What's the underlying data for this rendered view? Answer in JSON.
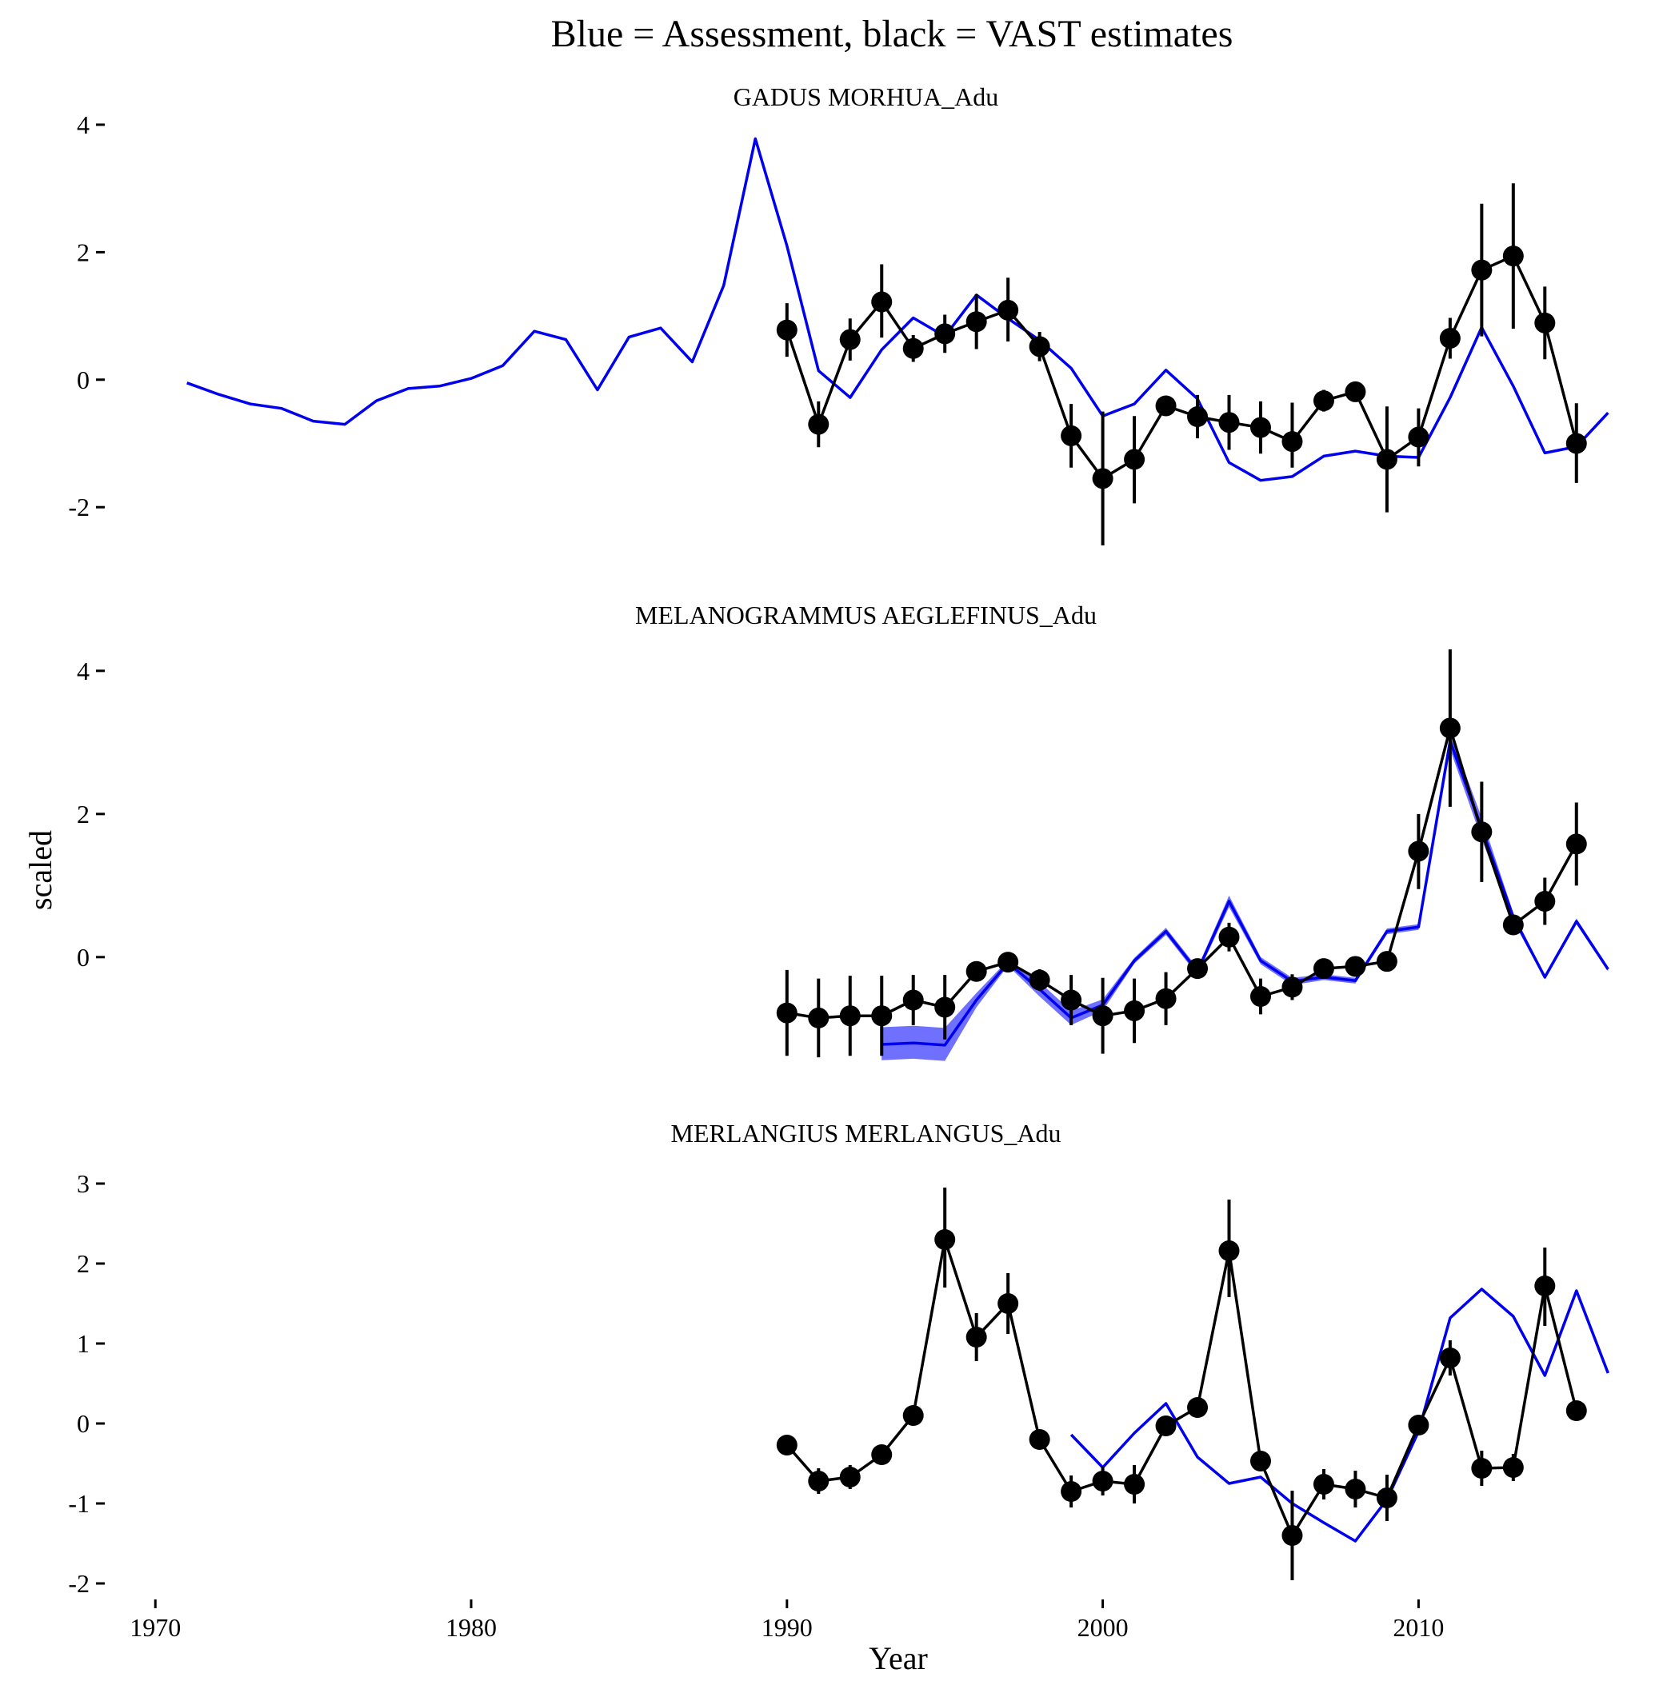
{
  "title": "Blue = Assessment, black = VAST estimates",
  "xlabel": "Year",
  "ylabel": "scaled",
  "colors": {
    "assessment": "#0000ee",
    "assessment_band": "#7070ff",
    "vast": "#000000"
  },
  "chart_data": {
    "type": "line",
    "x_axis": {
      "label": "Year",
      "range": [
        1968.5,
        2016.5
      ],
      "ticks": [
        1970,
        1980,
        1990,
        2000,
        2010
      ]
    },
    "legend": "none",
    "grid": false,
    "panels": [
      {
        "title": "GADUS MORHUA_Adu",
        "ylim": [
          -2.7,
          4.2
        ],
        "yticks": [
          -2,
          0,
          2,
          4
        ],
        "series": [
          {
            "kind": "assessment",
            "x": [
              1971,
              1972,
              1973,
              1974,
              1975,
              1976,
              1977,
              1978,
              1979,
              1980,
              1981,
              1982,
              1983,
              1984,
              1985,
              1986,
              1987,
              1988,
              1989,
              1990,
              1991,
              1992,
              1993,
              1994,
              1995,
              1996,
              1997,
              1998,
              1999,
              2000,
              2001,
              2002,
              2003,
              2004,
              2005,
              2006,
              2007,
              2008,
              2009,
              2010,
              2011,
              2012,
              2013,
              2014,
              2015,
              2016
            ],
            "y": [
              -0.05,
              -0.23,
              -0.38,
              -0.45,
              -0.65,
              -0.7,
              -0.33,
              -0.14,
              -0.1,
              0.02,
              0.22,
              0.76,
              0.63,
              -0.16,
              0.67,
              0.81,
              0.28,
              1.48,
              3.78,
              2.1,
              0.14,
              -0.28,
              0.47,
              0.97,
              0.68,
              1.33,
              0.96,
              0.62,
              0.18,
              -0.57,
              -0.38,
              0.15,
              -0.3,
              -1.3,
              -1.58,
              -1.52,
              -1.2,
              -1.12,
              -1.2,
              -1.22,
              -0.28,
              0.82,
              -0.1,
              -1.15,
              -1.05,
              -0.52
            ]
          },
          {
            "kind": "vast",
            "x": [
              1990,
              1991,
              1992,
              1993,
              1994,
              1995,
              1996,
              1997,
              1998,
              1999,
              2000,
              2001,
              2002,
              2003,
              2004,
              2005,
              2006,
              2007,
              2008,
              2009,
              2010,
              2011,
              2012,
              2013,
              2014,
              2015
            ],
            "y": [
              0.78,
              -0.7,
              0.63,
              1.22,
              0.49,
              0.72,
              0.91,
              1.09,
              0.52,
              -0.88,
              -1.55,
              -1.25,
              -0.41,
              -0.58,
              -0.67,
              -0.75,
              -0.97,
              -0.33,
              -0.19,
              -1.25,
              -0.9,
              0.65,
              1.72,
              1.94,
              0.89,
              -1.0
            ],
            "lower": [
              0.36,
              -1.06,
              0.3,
              0.66,
              0.28,
              0.42,
              0.48,
              0.6,
              0.29,
              -1.38,
              -2.6,
              -1.94,
              -0.56,
              -0.92,
              -1.1,
              -1.16,
              -1.38,
              -0.5,
              -0.24,
              -2.08,
              -1.36,
              0.33,
              0.68,
              0.8,
              0.32,
              -1.62
            ],
            "upper": [
              1.2,
              -0.34,
              0.96,
              1.81,
              0.7,
              1.02,
              1.34,
              1.6,
              0.75,
              -0.38,
              -0.5,
              -0.57,
              -0.26,
              -0.24,
              -0.24,
              -0.34,
              -0.36,
              -0.16,
              -0.14,
              -0.42,
              -0.45,
              0.97,
              2.76,
              3.08,
              1.46,
              -0.37
            ]
          }
        ]
      },
      {
        "title": "MELANOGRAMMUS AEGLEFINUS_Adu",
        "ylim": [
          -1.6,
          4.3
        ],
        "yticks": [
          0,
          2,
          4
        ],
        "series": [
          {
            "kind": "assessment",
            "x": [
              1993,
              1994,
              1995,
              1996,
              1997,
              1998,
              1999,
              2000,
              2001,
              2002,
              2003,
              2004,
              2005,
              2006,
              2007,
              2008,
              2009,
              2010,
              2011,
              2012,
              2013,
              2014,
              2015,
              2016
            ],
            "y": [
              -1.22,
              -1.2,
              -1.23,
              -0.6,
              -0.08,
              -0.45,
              -0.85,
              -0.67,
              -0.05,
              0.36,
              -0.2,
              0.78,
              -0.05,
              -0.34,
              -0.28,
              -0.33,
              0.36,
              0.42,
              3.02,
              1.8,
              0.56,
              -0.28,
              0.5,
              -0.17
            ],
            "lower": [
              -1.44,
              -1.42,
              -1.45,
              -0.7,
              -0.12,
              -0.55,
              -0.95,
              -0.75,
              -0.09,
              0.31,
              -0.25,
              0.7,
              -0.1,
              -0.39,
              -0.32,
              -0.37,
              0.32,
              0.38,
              2.9,
              1.65,
              0.5,
              -0.31,
              0.46,
              -0.2
            ],
            "upper": [
              -0.98,
              -0.96,
              -0.99,
              -0.5,
              -0.04,
              -0.35,
              -0.75,
              -0.59,
              -0.01,
              0.41,
              -0.15,
              0.86,
              0.0,
              -0.29,
              -0.24,
              -0.29,
              0.4,
              0.46,
              3.14,
              1.95,
              0.62,
              -0.25,
              0.54,
              -0.14
            ]
          },
          {
            "kind": "vast",
            "x": [
              1990,
              1991,
              1992,
              1993,
              1994,
              1995,
              1996,
              1997,
              1998,
              1999,
              2000,
              2001,
              2002,
              2003,
              2004,
              2005,
              2006,
              2007,
              2008,
              2009,
              2010,
              2011,
              2012,
              2013,
              2014,
              2015
            ],
            "y": [
              -0.78,
              -0.85,
              -0.82,
              -0.82,
              -0.6,
              -0.7,
              -0.2,
              -0.07,
              -0.32,
              -0.6,
              -0.82,
              -0.75,
              -0.58,
              -0.16,
              0.28,
              -0.55,
              -0.42,
              -0.16,
              -0.13,
              -0.06,
              1.48,
              3.2,
              1.75,
              0.45,
              0.78,
              1.58
            ],
            "lower": [
              -1.38,
              -1.4,
              -1.38,
              -1.38,
              -0.95,
              -1.15,
              -0.3,
              -0.17,
              -0.47,
              -0.95,
              -1.35,
              -1.2,
              -0.95,
              -0.26,
              0.08,
              -0.8,
              -0.6,
              -0.26,
              -0.23,
              -0.13,
              0.95,
              2.1,
              1.05,
              0.32,
              0.45,
              1.0
            ],
            "upper": [
              -0.18,
              -0.3,
              -0.26,
              -0.26,
              -0.25,
              -0.25,
              -0.1,
              0.03,
              -0.17,
              -0.25,
              -0.29,
              -0.3,
              -0.21,
              -0.06,
              0.48,
              -0.3,
              -0.24,
              -0.06,
              -0.03,
              0.01,
              2.0,
              4.3,
              2.45,
              0.58,
              1.11,
              2.16
            ]
          }
        ]
      },
      {
        "title": "MERLANGIUS MERLANGUS_Adu",
        "ylim": [
          -2.1,
          3.2
        ],
        "yticks": [
          -2,
          -1,
          0,
          1,
          2,
          3
        ],
        "series": [
          {
            "kind": "assessment",
            "x": [
              1999,
              2000,
              2001,
              2002,
              2003,
              2004,
              2005,
              2006,
              2007,
              2008,
              2009,
              2010,
              2011,
              2012,
              2013,
              2014,
              2015,
              2016
            ],
            "y": [
              -0.14,
              -0.55,
              -0.12,
              0.25,
              -0.42,
              -0.75,
              -0.67,
              -1.0,
              -1.24,
              -1.47,
              -0.95,
              -0.1,
              1.32,
              1.68,
              1.34,
              0.6,
              1.66,
              0.63
            ]
          },
          {
            "kind": "vast",
            "x": [
              1990,
              1991,
              1992,
              1993,
              1994,
              1995,
              1996,
              1997,
              1998,
              1999,
              2000,
              2001,
              2002,
              2003,
              2004,
              2005,
              2006,
              2007,
              2008,
              2009,
              2010,
              2011,
              2012,
              2013,
              2014,
              2015
            ],
            "y": [
              -0.27,
              -0.72,
              -0.67,
              -0.39,
              0.1,
              2.3,
              1.08,
              1.5,
              -0.2,
              -0.85,
              -0.72,
              -0.76,
              -0.03,
              0.2,
              2.16,
              -0.47,
              -1.4,
              -0.76,
              -0.82,
              -0.93,
              -0.02,
              0.82,
              -0.56,
              -0.55,
              1.72,
              0.16
            ],
            "lower": [
              -0.27,
              -0.88,
              -0.82,
              -0.39,
              0.1,
              1.7,
              0.78,
              1.12,
              -0.2,
              -1.05,
              -0.9,
              -1.0,
              -0.15,
              0.2,
              1.58,
              -0.47,
              -1.96,
              -0.95,
              -1.05,
              -1.22,
              -0.06,
              0.6,
              -0.78,
              -0.72,
              1.22,
              0.16
            ],
            "upper": [
              -0.27,
              -0.56,
              -0.52,
              -0.39,
              0.1,
              2.95,
              1.38,
              1.88,
              -0.2,
              -0.65,
              -0.54,
              -0.52,
              0.09,
              0.2,
              2.8,
              -0.47,
              -0.84,
              -0.57,
              -0.59,
              -0.64,
              0.02,
              1.04,
              -0.34,
              -0.38,
              2.2,
              0.16
            ]
          }
        ]
      }
    ]
  }
}
